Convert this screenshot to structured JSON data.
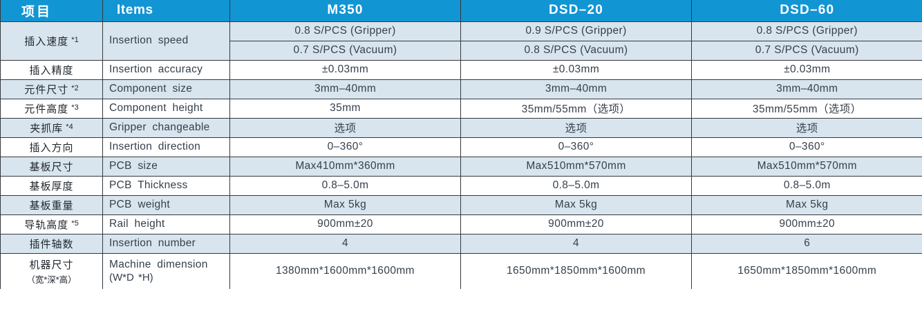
{
  "colors": {
    "header_bg": "#1295d3",
    "header_text": "#ffffff",
    "stripe_bg": "#d8e5ee",
    "row_bg": "#ffffff",
    "border": "#33383d",
    "text": "#343f4b",
    "label_text": "#22282e"
  },
  "table": {
    "header": {
      "items_cn": "项目",
      "items_en": "Items",
      "models": [
        "M350",
        "DSD–20",
        "DSD–60"
      ]
    },
    "rows": [
      {
        "cn": "插入速度",
        "note": "*1",
        "en": "Insertion speed",
        "shaded": true,
        "sub_values": [
          [
            "0.8 S/PCS (Gripper)",
            "0.9 S/PCS (Gripper)",
            "0.8 S/PCS (Gripper)"
          ],
          [
            "0.7 S/PCS (Vacuum)",
            "0.8 S/PCS (Vacuum)",
            "0.7 S/PCS (Vacuum)"
          ]
        ]
      },
      {
        "cn": "插入精度",
        "en": "Insertion accuracy",
        "shaded": false,
        "values": [
          "±0.03mm",
          "±0.03mm",
          "±0.03mm"
        ]
      },
      {
        "cn": "元件尺寸",
        "note": "*2",
        "en": "Component size",
        "shaded": true,
        "values": [
          "3mm–40mm",
          "3mm–40mm",
          "3mm–40mm"
        ]
      },
      {
        "cn": "元件高度",
        "note": "*3",
        "en": "Component height",
        "shaded": false,
        "values": [
          "35mm",
          "35mm/55mm（选项）",
          "35mm/55mm（选项）"
        ]
      },
      {
        "cn": "夹抓库",
        "note": "*4",
        "en": "Gripper changeable",
        "shaded": true,
        "values": [
          "选项",
          "选项",
          "选项"
        ]
      },
      {
        "cn": "插入方向",
        "en": "Insertion direction",
        "shaded": false,
        "values": [
          "0–360°",
          "0–360°",
          "0–360°"
        ]
      },
      {
        "cn": "基板尺寸",
        "en": "PCB size",
        "shaded": true,
        "values": [
          "Max410mm*360mm",
          "Max510mm*570mm",
          "Max510mm*570mm"
        ]
      },
      {
        "cn": "基板厚度",
        "en": "PCB Thickness",
        "shaded": false,
        "values": [
          "0.8–5.0m",
          "0.8–5.0m",
          "0.8–5.0m"
        ]
      },
      {
        "cn": "基板重量",
        "en": "PCB weight",
        "shaded": true,
        "values": [
          "Max 5kg",
          "Max 5kg",
          "Max 5kg"
        ]
      },
      {
        "cn": "导轨高度",
        "note": "*5",
        "en": "Rail height",
        "shaded": false,
        "values": [
          "900mm±20",
          "900mm±20",
          "900mm±20"
        ]
      },
      {
        "cn": "插件轴数",
        "en": "Insertion number",
        "shaded": true,
        "values": [
          "4",
          "4",
          "6"
        ]
      },
      {
        "cn": "机器尺寸",
        "cn_sub": "（宽*深*高）",
        "en": "Machine dimension",
        "en_sub": "(W*D *H)",
        "shaded": false,
        "tall": true,
        "values": [
          "1380mm*1600mm*1600mm",
          "1650mm*1850mm*1600mm",
          "1650mm*1850mm*1600mm"
        ]
      }
    ]
  }
}
